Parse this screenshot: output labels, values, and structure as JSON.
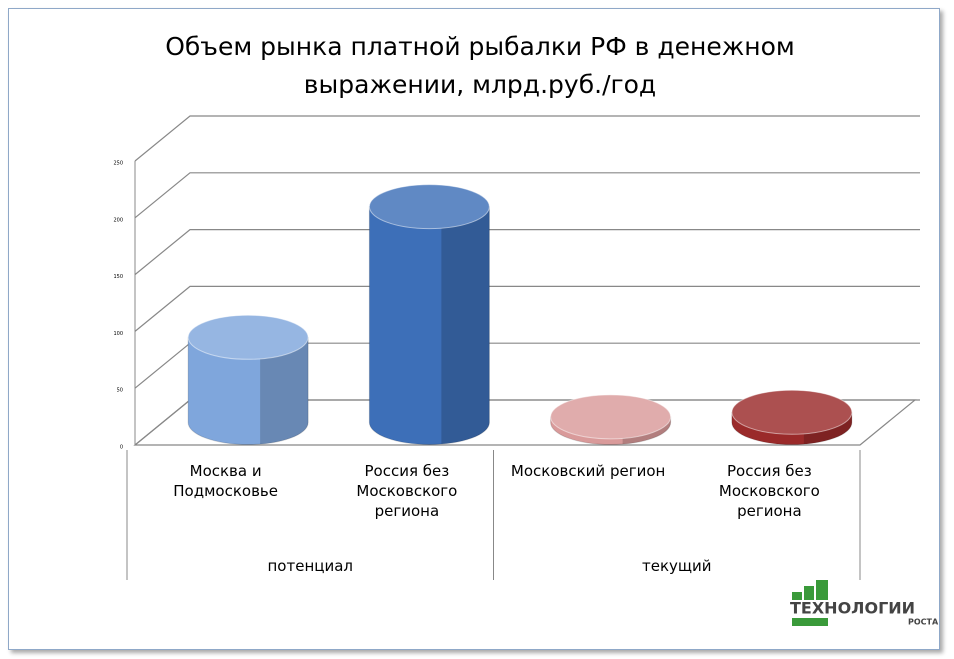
{
  "chart_data": {
    "type": "bar",
    "title": "Объем рынка платной рыбалки РФ в денежном выражении, млрд.руб./год",
    "categories": [
      "Москва и Подмосковье",
      "Россия без Московского региона",
      "Московский регион",
      "Россия без Московского региона"
    ],
    "groups": [
      {
        "label": "потенциал",
        "span": 2
      },
      {
        "label": "текущий",
        "span": 2
      }
    ],
    "values": [
      75,
      190,
      5,
      9
    ],
    "colors": [
      "#7fa6dc",
      "#3d6fb8",
      "#d99a9a",
      "#9a2a2a"
    ],
    "ylim": [
      0,
      250
    ],
    "yticks": [
      0,
      50,
      100,
      150,
      200,
      250
    ],
    "grid": true,
    "logo": {
      "text": "ТЕХНОЛОГИИ",
      "sub": "РОСТА"
    }
  }
}
